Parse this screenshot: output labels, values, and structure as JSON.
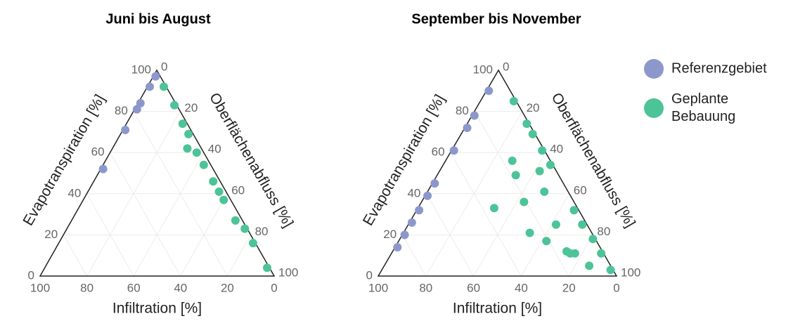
{
  "chart_data": [
    {
      "type": "ternary",
      "title": "Juni bis August",
      "grid": true,
      "axes": {
        "infiltration": {
          "label": "Infiltration [%]",
          "ticks": [
            0,
            20,
            40,
            60,
            80,
            100
          ]
        },
        "evapotranspiration": {
          "label": "Evapotranspiration [%]",
          "ticks": [
            0,
            20,
            40,
            60,
            80,
            100
          ]
        },
        "runoff": {
          "label": "Oberflächenabfluss [%]",
          "ticks": [
            0,
            20,
            40,
            60,
            80,
            100
          ]
        }
      },
      "series": [
        {
          "color": "#8c98cc",
          "infiltration": [
            2,
            7,
            15,
            18,
            28,
            47
          ],
          "evapotranspiration": [
            97,
            92,
            84,
            81,
            71,
            52
          ],
          "runoff": [
            1,
            1,
            1,
            1,
            1,
            1
          ]
        },
        {
          "color": "#4cc497",
          "infiltration": [
            1,
            1,
            2,
            2,
            3,
            6,
            3,
            3,
            3,
            3,
            3,
            1,
            1,
            1
          ],
          "evapotranspiration": [
            92,
            83,
            74,
            69,
            60,
            62,
            54,
            46,
            41,
            37,
            27,
            23,
            16,
            4
          ],
          "runoff": [
            7,
            16,
            24,
            29,
            37,
            32,
            43,
            51,
            56,
            60,
            70,
            76,
            83,
            95
          ]
        }
      ]
    },
    {
      "type": "ternary",
      "title": "September bis November",
      "grid": true,
      "axes": {
        "infiltration": {
          "label": "Infiltration [%]",
          "ticks": [
            0,
            20,
            40,
            60,
            80,
            100
          ]
        },
        "evapotranspiration": {
          "label": "Evapotranspiration [%]",
          "ticks": [
            0,
            20,
            40,
            60,
            80,
            100
          ]
        },
        "runoff": {
          "label": "Oberflächenabfluss [%]",
          "ticks": [
            0,
            20,
            40,
            60,
            80,
            100
          ]
        }
      },
      "series": [
        {
          "name": "Referenzgebiet",
          "color": "#8c98cc",
          "infiltration": [
            9,
            21,
            27,
            38,
            54,
            60,
            67,
            73,
            79,
            85
          ],
          "evapotranspiration": [
            90,
            78,
            72,
            61,
            45,
            39,
            32,
            26,
            20,
            14
          ],
          "runoff": [
            1,
            1,
            1,
            1,
            1,
            1,
            1,
            1,
            1,
            1
          ]
        },
        {
          "name": "Geplante Bebauung",
          "color": "#4cc497",
          "infiltration": [
            1,
            1,
            1,
            1,
            1,
            2,
            2,
            1,
            1,
            1,
            16,
            18,
            7,
            10,
            21,
            35,
            13,
            26,
            21,
            15,
            14,
            12,
            9
          ],
          "evapotranspiration": [
            85,
            74,
            69,
            61,
            54,
            32,
            25,
            18,
            11,
            3,
            56,
            49,
            51,
            41,
            36,
            33,
            25,
            21,
            17,
            12,
            11,
            11,
            5
          ],
          "runoff": [
            14,
            25,
            30,
            38,
            45,
            66,
            73,
            81,
            88,
            96,
            28,
            33,
            42,
            49,
            43,
            32,
            62,
            53,
            62,
            73,
            75,
            77,
            86
          ]
        }
      ]
    }
  ]
}
